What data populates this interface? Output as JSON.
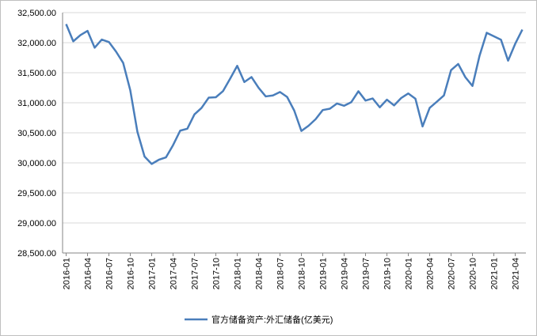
{
  "chart_data": {
    "type": "line",
    "categories": [
      "2016-01",
      null,
      null,
      "2016-04",
      null,
      null,
      "2016-07",
      null,
      null,
      "2016-10",
      null,
      null,
      "2017-01",
      null,
      null,
      "2017-04",
      null,
      null,
      "2017-07",
      null,
      null,
      "2017-10",
      null,
      null,
      "2018-01",
      null,
      null,
      "2018-04",
      null,
      null,
      "2018-07",
      null,
      null,
      "2018-10",
      null,
      null,
      "2019-01",
      null,
      null,
      "2019-04",
      null,
      null,
      "2019-07",
      null,
      null,
      "2019-10",
      null,
      null,
      "2020-01",
      null,
      null,
      "2020-04",
      null,
      null,
      "2020-07",
      null,
      null,
      "2020-10",
      null,
      null,
      "2021-01",
      null,
      null,
      "2021-04",
      null
    ],
    "series": [
      {
        "name": "官方储备资产:外汇储备(亿美元)",
        "color": "#4a7ebb",
        "values": [
          32309,
          32023,
          32126,
          32197,
          31917,
          32052,
          32011,
          31852,
          31664,
          31206,
          30516,
          30105,
          29982,
          30051,
          30091,
          30295,
          30536,
          30568,
          30807,
          30915,
          31085,
          31092,
          31193,
          31399,
          31615,
          31345,
          31428,
          31249,
          31106,
          31121,
          31179,
          31097,
          30870,
          30531,
          30617,
          30727,
          30879,
          30901,
          30988,
          30950,
          31010,
          31192,
          31037,
          31072,
          30924,
          31052,
          30956,
          31079,
          31155,
          31067,
          30606,
          30915,
          31017,
          31123,
          31544,
          31646,
          31426,
          31280,
          31785,
          32165,
          32107,
          32050,
          31701,
          31982,
          32218
        ]
      }
    ],
    "ylim": [
      28500,
      32500
    ],
    "yticks": [
      {
        "value": 28500,
        "label": "28,500.00"
      },
      {
        "value": 29000,
        "label": "29,000.00"
      },
      {
        "value": 29500,
        "label": "29,500.00"
      },
      {
        "value": 30000,
        "label": "30,000.00"
      },
      {
        "value": 30500,
        "label": "30,500.00"
      },
      {
        "value": 31000,
        "label": "31,000.00"
      },
      {
        "value": 31500,
        "label": "31,500.00"
      },
      {
        "value": 32000,
        "label": "32,000.00"
      },
      {
        "value": 32500,
        "label": "32,500.00"
      }
    ],
    "grid": true,
    "legend": "bottom"
  }
}
